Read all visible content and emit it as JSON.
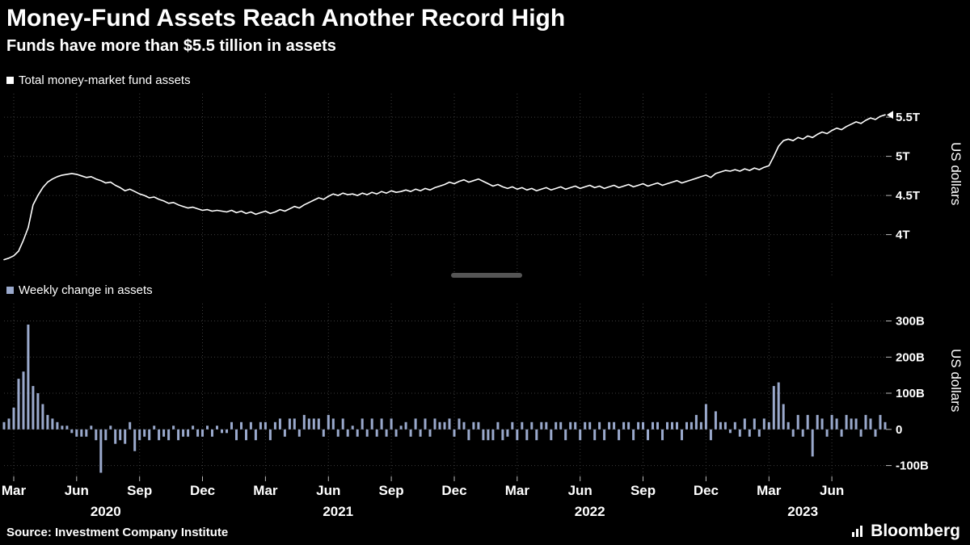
{
  "header": {
    "title": "Money-Fund Assets Reach Another Record High",
    "subtitle": "Funds have more than $5.5 tillion in assets"
  },
  "panels": {
    "top": {
      "legend": "Total money-market fund assets",
      "axis_title": "US dollars"
    },
    "bottom": {
      "legend": "Weekly change in assets",
      "axis_title": "US dollars"
    }
  },
  "footer": {
    "source": "Source: Investment Company Institute",
    "brand": "Bloomberg"
  },
  "colors": {
    "background": "#000000",
    "line": "#ffffff",
    "bar": "#9aa9cc",
    "grid": "#3d3d3d",
    "tick": "#bbbbbb"
  },
  "chart_data": [
    {
      "type": "line",
      "name": "Total money-market fund assets",
      "axis_label": "US dollars",
      "color": "#ffffff",
      "ylim": [
        3.47,
        5.8
      ],
      "yticks": [
        {
          "v": 5.5,
          "label": "5.5T"
        },
        {
          "v": 5.0,
          "label": "5T"
        },
        {
          "v": 4.5,
          "label": "4.5T"
        },
        {
          "v": 4.0,
          "label": "4T"
        }
      ],
      "x_ticks": [
        {
          "label": "Mar",
          "i": 2
        },
        {
          "label": "Jun",
          "i": 15
        },
        {
          "label": "Sep",
          "i": 28
        },
        {
          "label": "Dec",
          "i": 41
        },
        {
          "label": "Mar",
          "i": 54
        },
        {
          "label": "Jun",
          "i": 67
        },
        {
          "label": "Sep",
          "i": 80
        },
        {
          "label": "Dec",
          "i": 93
        },
        {
          "label": "Mar",
          "i": 106
        },
        {
          "label": "Jun",
          "i": 119
        },
        {
          "label": "Sep",
          "i": 132
        },
        {
          "label": "Dec",
          "i": 145
        },
        {
          "label": "Mar",
          "i": 158
        },
        {
          "label": "Jun",
          "i": 171
        }
      ],
      "year_labels": [
        {
          "label": "2020",
          "i": 21
        },
        {
          "label": "2021",
          "i": 69
        },
        {
          "label": "2022",
          "i": 121
        },
        {
          "label": "2023",
          "i": 165
        }
      ],
      "values": [
        3.68,
        3.7,
        3.73,
        3.79,
        3.93,
        4.09,
        4.38,
        4.5,
        4.6,
        4.67,
        4.71,
        4.74,
        4.76,
        4.77,
        4.78,
        4.77,
        4.75,
        4.73,
        4.74,
        4.71,
        4.69,
        4.66,
        4.67,
        4.63,
        4.6,
        4.56,
        4.58,
        4.55,
        4.52,
        4.5,
        4.47,
        4.48,
        4.45,
        4.43,
        4.4,
        4.41,
        4.38,
        4.36,
        4.34,
        4.35,
        4.33,
        4.31,
        4.32,
        4.3,
        4.31,
        4.3,
        4.29,
        4.31,
        4.28,
        4.3,
        4.27,
        4.29,
        4.26,
        4.28,
        4.3,
        4.27,
        4.29,
        4.32,
        4.3,
        4.33,
        4.36,
        4.34,
        4.38,
        4.41,
        4.44,
        4.47,
        4.45,
        4.49,
        4.52,
        4.5,
        4.53,
        4.51,
        4.52,
        4.5,
        4.53,
        4.51,
        4.54,
        4.52,
        4.55,
        4.53,
        4.56,
        4.54,
        4.55,
        4.57,
        4.55,
        4.58,
        4.56,
        4.59,
        4.57,
        4.6,
        4.62,
        4.64,
        4.67,
        4.65,
        4.68,
        4.7,
        4.67,
        4.69,
        4.71,
        4.68,
        4.65,
        4.62,
        4.64,
        4.61,
        4.59,
        4.61,
        4.58,
        4.6,
        4.57,
        4.59,
        4.56,
        4.58,
        4.6,
        4.57,
        4.59,
        4.61,
        4.58,
        4.6,
        4.62,
        4.59,
        4.61,
        4.63,
        4.6,
        4.62,
        4.59,
        4.61,
        4.63,
        4.6,
        4.62,
        4.64,
        4.61,
        4.63,
        4.65,
        4.62,
        4.64,
        4.66,
        4.63,
        4.65,
        4.67,
        4.69,
        4.66,
        4.68,
        4.7,
        4.72,
        4.74,
        4.76,
        4.73,
        4.78,
        4.8,
        4.82,
        4.81,
        4.83,
        4.81,
        4.84,
        4.82,
        4.85,
        4.83,
        4.86,
        4.88,
        5.0,
        5.13,
        5.2,
        5.22,
        5.2,
        5.24,
        5.22,
        5.26,
        5.24,
        5.28,
        5.31,
        5.29,
        5.33,
        5.36,
        5.34,
        5.38,
        5.41,
        5.44,
        5.42,
        5.46,
        5.49,
        5.47,
        5.51,
        5.53
      ]
    },
    {
      "type": "bar",
      "name": "Weekly change in assets",
      "axis_label": "US dollars",
      "color": "#9aa9cc",
      "baseline": 0,
      "ylim": [
        -130,
        348
      ],
      "yticks": [
        {
          "v": 300,
          "label": "300B"
        },
        {
          "v": 200,
          "label": "200B"
        },
        {
          "v": 100,
          "label": "100B"
        },
        {
          "v": 0,
          "label": "0"
        },
        {
          "v": -100,
          "label": "-100B"
        }
      ],
      "values": [
        20,
        30,
        60,
        140,
        160,
        290,
        120,
        100,
        70,
        40,
        30,
        20,
        10,
        10,
        -10,
        -20,
        -20,
        -20,
        10,
        -30,
        -120,
        -30,
        10,
        -40,
        -30,
        -40,
        20,
        -60,
        -30,
        -20,
        -30,
        10,
        -30,
        -20,
        -30,
        10,
        -30,
        -20,
        -20,
        10,
        -20,
        -20,
        10,
        -20,
        10,
        -10,
        -10,
        20,
        -30,
        20,
        -30,
        20,
        -30,
        20,
        20,
        -30,
        20,
        30,
        -20,
        30,
        30,
        -20,
        40,
        30,
        30,
        30,
        -20,
        40,
        30,
        -20,
        30,
        -20,
        10,
        -20,
        30,
        -20,
        30,
        -20,
        30,
        -20,
        30,
        -20,
        10,
        20,
        -20,
        30,
        -20,
        30,
        -20,
        30,
        20,
        20,
        30,
        -20,
        30,
        20,
        -30,
        20,
        20,
        -30,
        -30,
        -30,
        20,
        -30,
        -20,
        20,
        -30,
        20,
        -30,
        20,
        -30,
        20,
        20,
        -30,
        20,
        20,
        -30,
        20,
        20,
        -30,
        20,
        20,
        -30,
        20,
        -30,
        20,
        20,
        -30,
        20,
        20,
        -30,
        20,
        20,
        -30,
        20,
        20,
        -30,
        20,
        20,
        20,
        -30,
        20,
        20,
        40,
        20,
        70,
        -30,
        50,
        20,
        20,
        -10,
        20,
        -20,
        30,
        -20,
        30,
        -20,
        30,
        20,
        120,
        130,
        70,
        20,
        -20,
        40,
        -20,
        40,
        -75,
        40,
        30,
        -20,
        40,
        30,
        -20,
        40,
        30,
        30,
        -20,
        40,
        30,
        -20,
        40,
        20
      ]
    }
  ]
}
